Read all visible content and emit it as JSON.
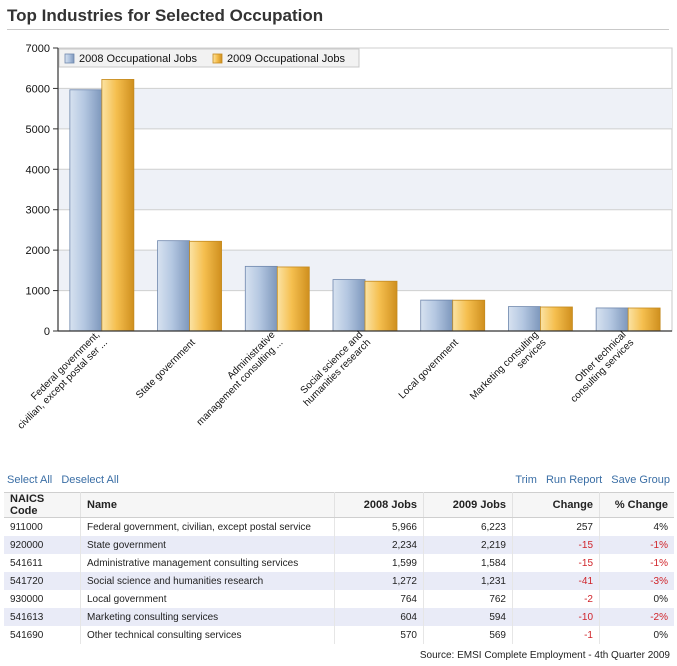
{
  "page": {
    "title": "Top Industries for Selected Occupation"
  },
  "chart_data": {
    "type": "bar",
    "categories": [
      [
        "Federal government,",
        "civilian, except postal ser ..."
      ],
      [
        "State government"
      ],
      [
        "Administrative",
        "management consulting ..."
      ],
      [
        "Social science and",
        "humanities research"
      ],
      [
        "Local government"
      ],
      [
        "Marketing consulting",
        "services"
      ],
      [
        "Other technical",
        "consulting services"
      ]
    ],
    "series": [
      {
        "name": "2008 Occupational Jobs",
        "values": [
          5966,
          2234,
          1599,
          1272,
          764,
          604,
          570
        ]
      },
      {
        "name": "2009 Occupational Jobs",
        "values": [
          6223,
          2219,
          1584,
          1231,
          762,
          594,
          569
        ]
      }
    ],
    "y_ticks": [
      "0",
      "1000",
      "2000",
      "3000",
      "4000",
      "5000",
      "6000",
      "7000"
    ],
    "ylim": [
      0,
      7000
    ],
    "legend_position": "top-left",
    "grid": true,
    "colors": {
      "series_2008": "#a9bfdc",
      "series_2009": "#f3bb4a"
    }
  },
  "actions": {
    "select_all": "Select All",
    "deselect_all": "Deselect All",
    "trim": "Trim",
    "run_report": "Run Report",
    "save_group": "Save Group"
  },
  "table": {
    "headers": {
      "code": "NAICS Code",
      "name": "Name",
      "jobs2008": "2008 Jobs",
      "jobs2009": "2009 Jobs",
      "change": "Change",
      "pct": "% Change"
    },
    "rows": [
      {
        "code": "911000",
        "name": "Federal government, civilian, except postal service",
        "jobs2008": "5,966",
        "jobs2009": "6,223",
        "change": "257",
        "pct": "4%"
      },
      {
        "code": "920000",
        "name": "State government",
        "jobs2008": "2,234",
        "jobs2009": "2,219",
        "change": "-15",
        "pct": "-1%"
      },
      {
        "code": "541611",
        "name": "Administrative management consulting services",
        "jobs2008": "1,599",
        "jobs2009": "1,584",
        "change": "-15",
        "pct": "-1%"
      },
      {
        "code": "541720",
        "name": "Social science and humanities research",
        "jobs2008": "1,272",
        "jobs2009": "1,231",
        "change": "-41",
        "pct": "-3%"
      },
      {
        "code": "930000",
        "name": "Local government",
        "jobs2008": "764",
        "jobs2009": "762",
        "change": "-2",
        "pct": "0%"
      },
      {
        "code": "541613",
        "name": "Marketing consulting services",
        "jobs2008": "604",
        "jobs2009": "594",
        "change": "-10",
        "pct": "-2%"
      },
      {
        "code": "541690",
        "name": "Other technical consulting services",
        "jobs2008": "570",
        "jobs2009": "569",
        "change": "-1",
        "pct": "0%"
      }
    ]
  },
  "footer": {
    "source": "Source: EMSI Complete Employment - 4th Quarter 2009"
  }
}
